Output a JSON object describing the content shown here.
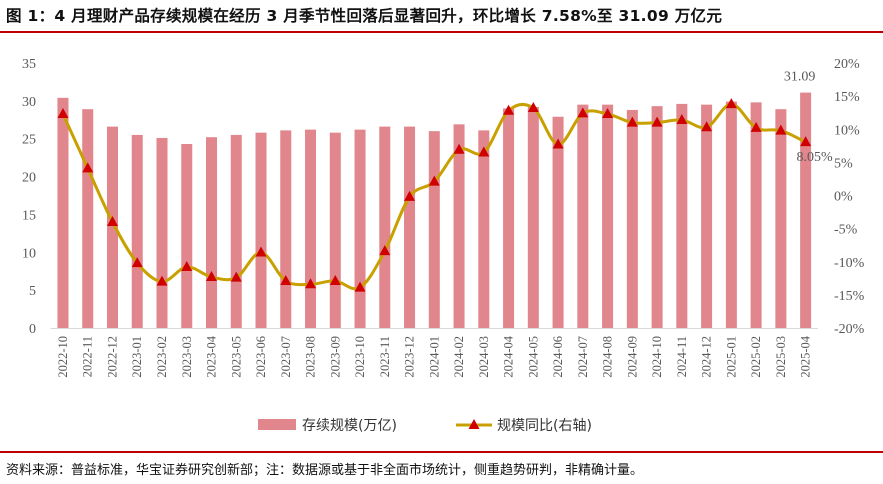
{
  "title": "图 1：4 月理财产品存续规模在经历 3 月季节性回落后显著回升，环比增长 7.58%至 31.09 万亿元",
  "footer": "资料来源：普益标准，华宝证券研究创新部；注：数据源或基于非全面市场统计，侧重趋势研判，非精确计量。",
  "colors": {
    "bar": "#e0868c",
    "line": "#c8a000",
    "marker": "#d00000",
    "rule": "#c00000"
  },
  "chart_data": {
    "type": "bar+line",
    "categories": [
      "2022-10",
      "2022-11",
      "2022-12",
      "2023-01",
      "2023-02",
      "2023-03",
      "2023-04",
      "2023-05",
      "2023-06",
      "2023-07",
      "2023-08",
      "2023-09",
      "2023-10",
      "2023-11",
      "2023-12",
      "2024-01",
      "2024-02",
      "2024-03",
      "2024-04",
      "2024-05",
      "2024-06",
      "2024-07",
      "2024-08",
      "2024-09",
      "2024-10",
      "2024-11",
      "2024-12",
      "2025-01",
      "2025-02",
      "2025-03",
      "2025-04"
    ],
    "series": [
      {
        "name": "存续规模(万亿)",
        "type": "bar",
        "axis": "left",
        "values": [
          30.4,
          28.9,
          26.6,
          25.5,
          25.1,
          24.3,
          25.2,
          25.5,
          25.8,
          26.1,
          26.2,
          25.8,
          26.2,
          26.6,
          26.6,
          26.0,
          26.9,
          26.1,
          29.0,
          29.2,
          27.9,
          29.5,
          29.5,
          28.8,
          29.3,
          29.6,
          29.5,
          29.9,
          29.8,
          28.9,
          31.09
        ]
      },
      {
        "name": "规模同比(右轴)",
        "type": "line",
        "axis": "right",
        "unit": "%",
        "values": [
          12.3,
          4.1,
          -4.0,
          -10.2,
          -13.0,
          -10.8,
          -12.3,
          -12.4,
          -8.6,
          -12.9,
          -13.4,
          -12.9,
          -13.9,
          -8.4,
          -0.2,
          2.1,
          6.9,
          6.5,
          12.8,
          13.2,
          7.7,
          12.4,
          12.3,
          11.0,
          11.0,
          11.4,
          10.3,
          13.8,
          10.2,
          9.8,
          8.05
        ]
      }
    ],
    "data_labels": {
      "bar_last": "31.09",
      "line_last": "8.05%"
    },
    "y_left": {
      "range": [
        0,
        35
      ],
      "ticks": [
        "0",
        "5",
        "10",
        "15",
        "20",
        "25",
        "30",
        "35"
      ]
    },
    "y_right": {
      "range": [
        -20,
        20
      ],
      "ticks": [
        "-20%",
        "-15%",
        "-10%",
        "-5%",
        "0%",
        "5%",
        "10%",
        "15%",
        "20%"
      ]
    },
    "grid": false,
    "legend": {
      "position": "bottom",
      "items": [
        "存续规模(万亿)",
        "规模同比(右轴)"
      ]
    }
  }
}
